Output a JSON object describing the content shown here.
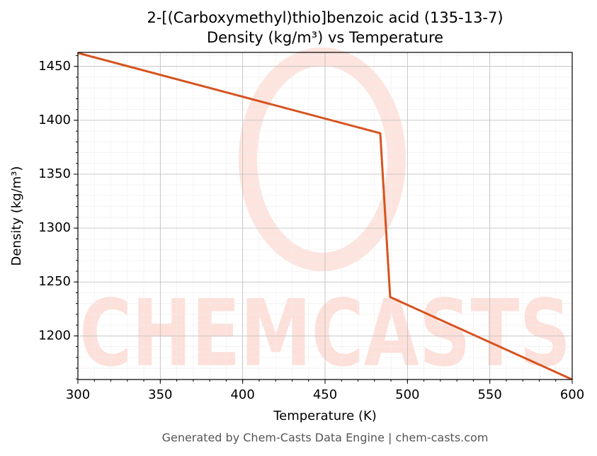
{
  "chart_data": {
    "type": "line",
    "title": "2-[(Carboxymethyl)thio]benzoic acid (135-13-7)",
    "subtitle": "Density (kg/m³) vs Temperature",
    "x_label": "Temperature (K)",
    "y_label": "Density (kg/m³)",
    "footer": "Generated by Chem-Casts Data Engine | chem-casts.com",
    "watermark": "CHEMCASTS",
    "x": [
      300,
      483.5,
      489.5,
      600
    ],
    "series": [
      {
        "name": "Density",
        "color": "#d6531f",
        "values": [
          1462.5,
          1388,
          1236,
          1159.5
        ]
      }
    ],
    "xlim": [
      300,
      600
    ],
    "xticks": [
      300,
      350,
      400,
      450,
      500,
      550,
      600
    ],
    "ylim": [
      1159.5,
      1463
    ],
    "yticks": [
      1200,
      1250,
      1300,
      1350,
      1400,
      1450
    ],
    "grid": true,
    "minor_grid": true
  }
}
